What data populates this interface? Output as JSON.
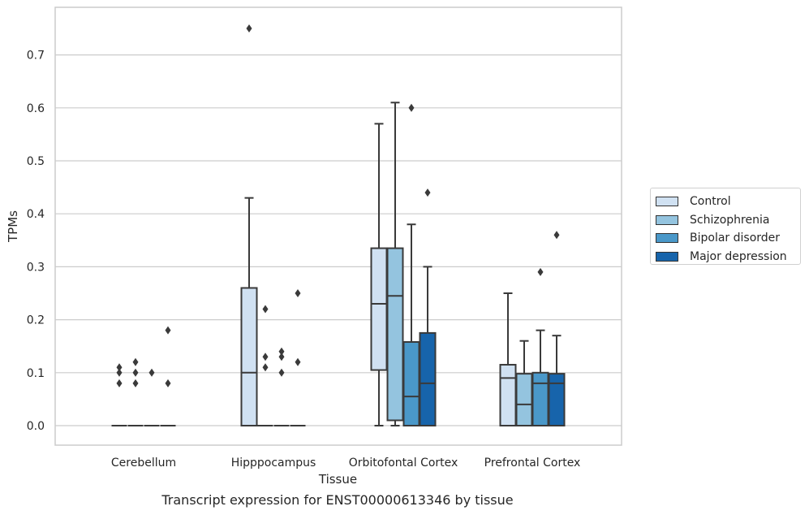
{
  "chart_data": {
    "type": "box",
    "caption": "Transcript expression for ENST00000613346 by tissue",
    "xlabel": "Tissue",
    "ylabel": "TPMs",
    "categories": [
      "Cerebellum",
      "Hipppocampus",
      "Orbitofontal Cortex",
      "Prefrontal Cortex"
    ],
    "y_ticks": [
      "0.0",
      "0.1",
      "0.2",
      "0.3",
      "0.4",
      "0.5",
      "0.6",
      "0.7"
    ],
    "ylim": [
      -0.037,
      0.79
    ],
    "grid": true,
    "legend_position": "right",
    "series": [
      {
        "name": "Control",
        "color": "#d0e1f2",
        "boxes": [
          {
            "min": 0,
            "q1": 0,
            "median": 0,
            "q3": 0,
            "max": 0,
            "outliers": [
              0.08,
              0.1,
              0.11
            ]
          },
          {
            "min": 0,
            "q1": 0,
            "median": 0.1,
            "q3": 0.26,
            "max": 0.43,
            "outliers": [
              0.75
            ]
          },
          {
            "min": 0,
            "q1": 0.105,
            "median": 0.23,
            "q3": 0.335,
            "max": 0.57,
            "outliers": []
          },
          {
            "min": 0,
            "q1": 0,
            "median": 0.09,
            "q3": 0.115,
            "max": 0.25,
            "outliers": []
          }
        ]
      },
      {
        "name": "Schizophrenia",
        "color": "#94c4df",
        "boxes": [
          {
            "min": 0,
            "q1": 0,
            "median": 0,
            "q3": 0,
            "max": 0,
            "outliers": [
              0.08,
              0.1,
              0.12
            ]
          },
          {
            "min": 0,
            "q1": 0,
            "median": 0,
            "q3": 0,
            "max": 0,
            "outliers": [
              0.11,
              0.13,
              0.22
            ]
          },
          {
            "min": 0,
            "q1": 0.01,
            "median": 0.245,
            "q3": 0.335,
            "max": 0.61,
            "outliers": []
          },
          {
            "min": 0,
            "q1": 0,
            "median": 0.04,
            "q3": 0.098,
            "max": 0.16,
            "outliers": []
          }
        ]
      },
      {
        "name": "Bipolar disorder",
        "color": "#4a98c9",
        "boxes": [
          {
            "min": 0,
            "q1": 0,
            "median": 0,
            "q3": 0,
            "max": 0,
            "outliers": [
              0.1
            ]
          },
          {
            "min": 0,
            "q1": 0,
            "median": 0,
            "q3": 0,
            "max": 0,
            "outliers": [
              0.1,
              0.13,
              0.14
            ]
          },
          {
            "min": 0,
            "q1": 0,
            "median": 0.055,
            "q3": 0.158,
            "max": 0.38,
            "outliers": [
              0.6
            ]
          },
          {
            "min": 0,
            "q1": 0,
            "median": 0.08,
            "q3": 0.1,
            "max": 0.18,
            "outliers": [
              0.29
            ]
          }
        ]
      },
      {
        "name": "Major depression",
        "color": "#1764ab",
        "boxes": [
          {
            "min": 0,
            "q1": 0,
            "median": 0,
            "q3": 0,
            "max": 0,
            "outliers": [
              0.08,
              0.18
            ]
          },
          {
            "min": 0,
            "q1": 0,
            "median": 0,
            "q3": 0,
            "max": 0,
            "outliers": [
              0.12,
              0.25
            ]
          },
          {
            "min": 0,
            "q1": 0,
            "median": 0.08,
            "q3": 0.175,
            "max": 0.3,
            "outliers": [
              0.44
            ]
          },
          {
            "min": 0,
            "q1": 0,
            "median": 0.08,
            "q3": 0.098,
            "max": 0.17,
            "outliers": [
              0.36
            ]
          }
        ]
      }
    ]
  }
}
